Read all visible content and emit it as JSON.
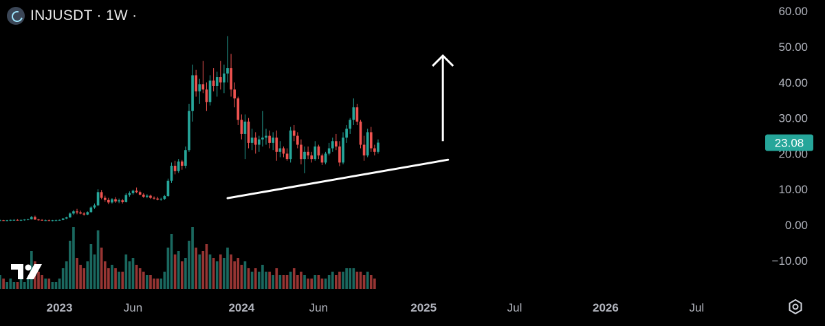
{
  "header": {
    "symbol": "INJUSDT · 1W ·",
    "logo_icon": "injective-logo-icon"
  },
  "chart_data": {
    "type": "candlestick",
    "title": "INJUSDT · 1W ·",
    "last_price_label": "23.08",
    "last_price": 23.08,
    "ylim": [
      -15,
      62
    ],
    "y_ticks": [
      60,
      50,
      40,
      30,
      20,
      10,
      0,
      -10
    ],
    "y_tick_labels": [
      "60.00",
      "50.00",
      "40.00",
      "30.00",
      "20.00",
      "10.00",
      "0.00",
      "−10.00"
    ],
    "x_tick_labels": [
      "2023",
      "Jun",
      "2024",
      "Jun",
      "2025",
      "Jul",
      "2026",
      "Jul"
    ],
    "x_tick_weeks": [
      0,
      21,
      52,
      74,
      104,
      130,
      156,
      182
    ],
    "x_range_weeks": [
      -17,
      200
    ],
    "candles": [
      [
        1.3,
        1.5,
        1.1,
        1.3
      ],
      [
        1.3,
        1.4,
        1.1,
        1.2
      ],
      [
        1.2,
        1.4,
        1.0,
        1.3
      ],
      [
        1.3,
        1.5,
        1.1,
        1.4
      ],
      [
        1.4,
        1.6,
        1.2,
        1.4
      ],
      [
        1.4,
        1.6,
        1.2,
        1.3
      ],
      [
        1.3,
        1.5,
        1.1,
        1.4
      ],
      [
        1.4,
        1.6,
        1.2,
        1.5
      ],
      [
        1.5,
        1.7,
        1.3,
        1.6
      ],
      [
        1.6,
        2.5,
        1.5,
        2.2
      ],
      [
        2.2,
        2.6,
        1.4,
        1.5
      ],
      [
        1.5,
        1.7,
        1.2,
        1.4
      ],
      [
        1.4,
        1.6,
        1.2,
        1.3
      ],
      [
        1.3,
        1.5,
        1.1,
        1.3
      ],
      [
        1.3,
        1.5,
        1.1,
        1.2
      ],
      [
        1.2,
        1.4,
        1.0,
        1.3
      ],
      [
        1.3,
        1.5,
        1.1,
        1.3
      ],
      [
        1.3,
        1.5,
        1.2,
        1.4
      ],
      [
        1.4,
        1.9,
        1.3,
        1.8
      ],
      [
        1.8,
        2.3,
        1.6,
        2.1
      ],
      [
        2.1,
        3.5,
        2.0,
        3.2
      ],
      [
        3.2,
        4.2,
        2.8,
        3.8
      ],
      [
        3.8,
        4.5,
        3.0,
        3.5
      ],
      [
        3.5,
        4.0,
        3.0,
        3.2
      ],
      [
        3.2,
        3.6,
        2.6,
        2.9
      ],
      [
        2.9,
        3.8,
        2.7,
        3.6
      ],
      [
        3.6,
        5.2,
        3.4,
        4.9
      ],
      [
        4.9,
        6.0,
        4.5,
        5.5
      ],
      [
        5.5,
        10.0,
        5.3,
        9.2
      ],
      [
        9.2,
        9.8,
        7.2,
        7.6
      ],
      [
        7.6,
        8.2,
        6.5,
        7.0
      ],
      [
        7.0,
        7.6,
        5.8,
        6.3
      ],
      [
        6.3,
        7.5,
        6.0,
        7.2
      ],
      [
        7.2,
        7.8,
        6.2,
        6.6
      ],
      [
        6.6,
        7.4,
        6.1,
        6.9
      ],
      [
        6.9,
        7.3,
        6.0,
        6.4
      ],
      [
        6.4,
        8.9,
        6.3,
        8.4
      ],
      [
        8.4,
        9.4,
        7.9,
        8.9
      ],
      [
        8.9,
        9.9,
        8.5,
        9.6
      ],
      [
        9.6,
        10.5,
        8.9,
        9.2
      ],
      [
        9.2,
        9.6,
        8.3,
        8.5
      ],
      [
        8.5,
        8.9,
        7.6,
        7.9
      ],
      [
        7.9,
        8.6,
        7.5,
        8.2
      ],
      [
        8.2,
        8.5,
        7.3,
        7.6
      ],
      [
        7.6,
        8.0,
        7.1,
        7.4
      ],
      [
        7.4,
        7.9,
        6.9,
        7.1
      ],
      [
        7.1,
        7.6,
        6.8,
        7.3
      ],
      [
        7.3,
        8.4,
        7.0,
        8.1
      ],
      [
        8.1,
        13.0,
        7.9,
        12.4
      ],
      [
        12.4,
        17.5,
        11.8,
        16.6
      ],
      [
        16.6,
        18.0,
        14.2,
        15.1
      ],
      [
        15.1,
        18.5,
        14.6,
        17.8
      ],
      [
        17.8,
        18.2,
        15.5,
        16.6
      ],
      [
        16.6,
        22.0,
        15.9,
        21.0
      ],
      [
        21.0,
        34.0,
        20.5,
        32.0
      ],
      [
        32.0,
        45.0,
        29.0,
        42.0
      ],
      [
        42.0,
        43.5,
        36.0,
        37.5
      ],
      [
        37.5,
        41.0,
        34.0,
        39.5
      ],
      [
        39.5,
        46.0,
        37.0,
        38.0
      ],
      [
        38.0,
        40.0,
        32.0,
        34.5
      ],
      [
        34.5,
        42.0,
        33.5,
        40.5
      ],
      [
        40.5,
        44.0,
        37.5,
        39.0
      ],
      [
        39.0,
        43.0,
        36.0,
        41.5
      ],
      [
        41.5,
        46.0,
        38.0,
        40.0
      ],
      [
        40.0,
        45.0,
        37.0,
        42.5
      ],
      [
        42.5,
        53.0,
        40.0,
        44.0
      ],
      [
        44.0,
        48.0,
        36.0,
        38.0
      ],
      [
        38.0,
        40.0,
        33.0,
        35.5
      ],
      [
        35.5,
        36.0,
        28.0,
        29.5
      ],
      [
        29.5,
        31.0,
        24.0,
        25.5
      ],
      [
        25.5,
        31.0,
        18.5,
        29.0
      ],
      [
        29.0,
        30.0,
        21.5,
        23.0
      ],
      [
        23.0,
        27.0,
        21.0,
        24.5
      ],
      [
        24.5,
        26.0,
        20.0,
        22.5
      ],
      [
        22.5,
        25.0,
        20.5,
        24.0
      ],
      [
        24.0,
        32.0,
        22.0,
        24.5
      ],
      [
        24.5,
        27.0,
        22.5,
        25.0
      ],
      [
        25.0,
        26.5,
        21.5,
        23.0
      ],
      [
        23.0,
        26.0,
        21.0,
        24.5
      ],
      [
        24.5,
        26.5,
        18.0,
        20.5
      ],
      [
        20.5,
        23.5,
        19.0,
        21.5
      ],
      [
        21.5,
        22.0,
        19.0,
        20.0
      ],
      [
        20.0,
        21.5,
        18.0,
        18.5
      ],
      [
        18.5,
        27.5,
        17.5,
        26.5
      ],
      [
        26.5,
        28.0,
        23.5,
        25.0
      ],
      [
        25.0,
        26.0,
        21.5,
        22.5
      ],
      [
        22.5,
        24.0,
        17.0,
        18.5
      ],
      [
        18.5,
        22.0,
        14.5,
        20.5
      ],
      [
        20.5,
        22.0,
        18.5,
        19.5
      ],
      [
        19.5,
        20.5,
        17.5,
        18.5
      ],
      [
        18.5,
        23.5,
        18.0,
        22.0
      ],
      [
        22.0,
        22.5,
        18.5,
        19.5
      ],
      [
        19.5,
        20.0,
        16.8,
        17.5
      ],
      [
        17.5,
        20.5,
        17.0,
        20.0
      ],
      [
        20.0,
        23.0,
        19.5,
        21.5
      ],
      [
        21.5,
        24.5,
        20.5,
        23.5
      ],
      [
        23.5,
        25.5,
        21.0,
        22.0
      ],
      [
        22.0,
        23.5,
        16.5,
        17.5
      ],
      [
        17.5,
        26.0,
        17.0,
        24.5
      ],
      [
        24.5,
        28.0,
        23.0,
        27.0
      ],
      [
        27.0,
        30.0,
        25.5,
        29.5
      ],
      [
        29.5,
        35.5,
        28.0,
        33.0
      ],
      [
        33.0,
        34.0,
        28.0,
        29.0
      ],
      [
        29.0,
        29.5,
        21.5,
        22.5
      ],
      [
        22.5,
        25.0,
        18.0,
        19.5
      ],
      [
        19.5,
        27.0,
        19.0,
        26.0
      ],
      [
        26.0,
        27.5,
        20.5,
        21.5
      ],
      [
        21.5,
        22.5,
        19.5,
        20.5
      ],
      [
        20.5,
        24.0,
        20.0,
        23.08
      ]
    ],
    "volume": [
      4,
      3,
      2,
      3,
      2,
      2,
      3,
      2,
      3,
      11,
      8,
      5,
      4,
      3,
      3,
      2,
      2,
      3,
      6,
      8,
      14,
      18,
      9,
      7,
      6,
      8,
      13,
      10,
      17,
      12,
      8,
      6,
      7,
      6,
      5,
      5,
      10,
      8,
      9,
      7,
      6,
      5,
      4,
      4,
      3,
      3,
      3,
      5,
      12,
      16,
      10,
      11,
      8,
      9,
      14,
      18,
      12,
      10,
      11,
      13,
      10,
      9,
      8,
      10,
      9,
      12,
      10,
      8,
      9,
      7,
      8,
      6,
      5,
      6,
      5,
      7,
      5,
      5,
      4,
      6,
      4,
      4,
      4,
      5,
      6,
      4,
      5,
      4,
      3,
      3,
      4,
      4,
      3,
      3,
      4,
      5,
      4,
      5,
      5,
      6,
      6,
      6,
      5,
      5,
      4,
      5,
      4,
      3
    ],
    "trendline": {
      "start": {
        "week": 48,
        "value": 7.5
      },
      "end": {
        "week": 111,
        "value": 18.3
      }
    },
    "arrow": {
      "week": 109.5,
      "from": 23.5,
      "to": 47.5
    },
    "colors": {
      "up": "#26a69a",
      "down": "#ef5350",
      "up_volume": "#1f7a70",
      "down_volume": "#b13e3c",
      "background": "#000000",
      "axis_text": "#b2b5be",
      "price_badge": "#26a69a",
      "annotation": "#ffffff"
    }
  },
  "footer": {
    "settings_icon": "settings-gear-icon",
    "watermark_icon": "tradingview-logo-icon"
  }
}
